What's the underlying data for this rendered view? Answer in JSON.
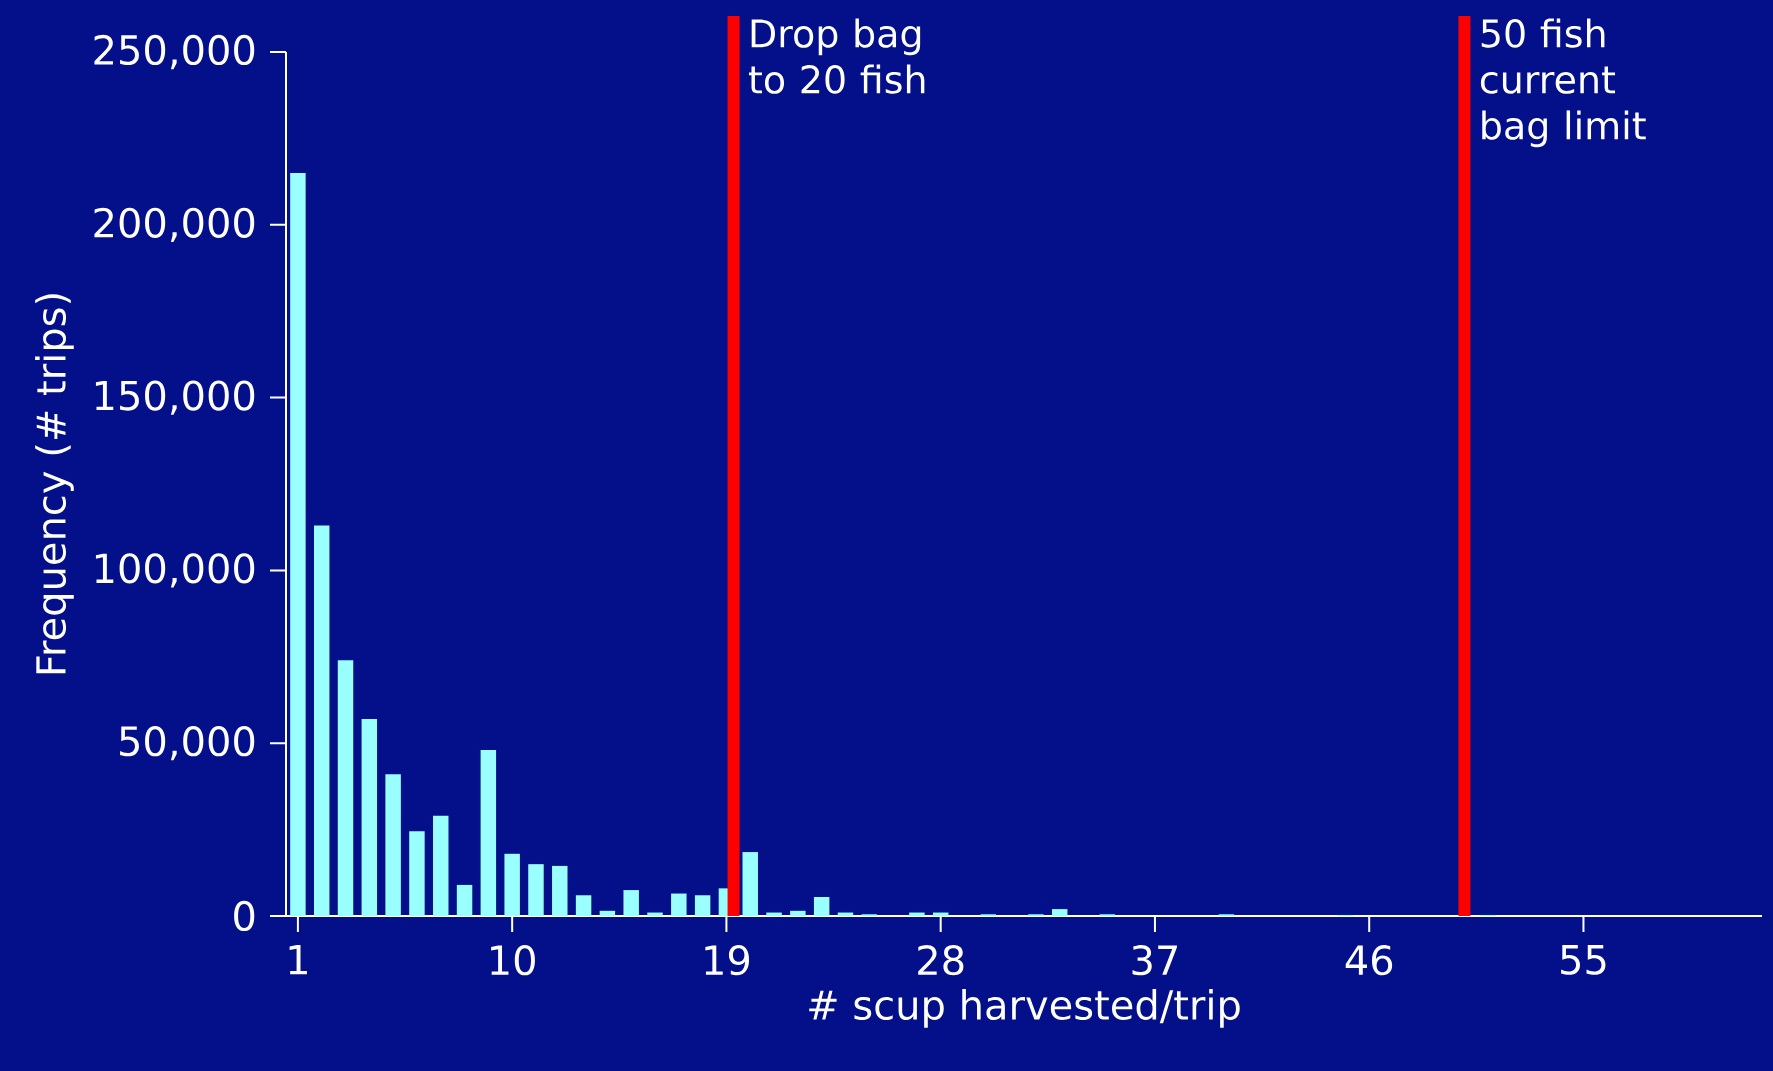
{
  "chart_data": {
    "type": "bar",
    "xlabel": "# scup harvested/trip",
    "ylabel": "Frequency (# trips)",
    "x": [
      1,
      2,
      3,
      4,
      5,
      6,
      7,
      8,
      9,
      10,
      11,
      12,
      13,
      14,
      15,
      16,
      17,
      18,
      19,
      20,
      21,
      22,
      23,
      24,
      25,
      26,
      27,
      28,
      29,
      30,
      31,
      32,
      33,
      34,
      35,
      36,
      37,
      38,
      39,
      40,
      41,
      42,
      43,
      44,
      45,
      46,
      47,
      48,
      49,
      50,
      51,
      52,
      53,
      54,
      55,
      56,
      57,
      58,
      59,
      60,
      61,
      62
    ],
    "values": [
      215000,
      113000,
      74000,
      57000,
      41000,
      24500,
      29000,
      9000,
      48000,
      18000,
      15000,
      14500,
      6000,
      1500,
      7500,
      1000,
      6500,
      6000,
      8000,
      18500,
      1000,
      1500,
      5500,
      1000,
      500,
      0,
      1000,
      1000,
      0,
      500,
      0,
      500,
      2000,
      0,
      500,
      0,
      0,
      0,
      0,
      500,
      0,
      0,
      0,
      0,
      300,
      0,
      0,
      0,
      0,
      0,
      300,
      0,
      0,
      0,
      0,
      0,
      0,
      0,
      0,
      0,
      0,
      0
    ],
    "color": "#99ffff",
    "xlim": [
      0.5,
      62.5
    ],
    "xticks": [
      1,
      10,
      19,
      28,
      37,
      46,
      55
    ],
    "ylim": [
      0,
      250000
    ],
    "yticks": [
      {
        "value": 0,
        "label": "0"
      },
      {
        "value": 50000,
        "label": "50,000"
      },
      {
        "value": 100000,
        "label": "100,000"
      },
      {
        "value": 150000,
        "label": "150,000"
      },
      {
        "value": 200000,
        "label": "200,000"
      },
      {
        "value": 250000,
        "label": "250,000"
      }
    ],
    "ref_lines": [
      {
        "axis": "x",
        "value": 19.3,
        "label": "Drop bag to 20 fish",
        "color": "#ff0000"
      },
      {
        "axis": "x",
        "value": 50,
        "label": "50 fish current bag limit",
        "color": "#ff0000"
      }
    ],
    "grid": false
  }
}
